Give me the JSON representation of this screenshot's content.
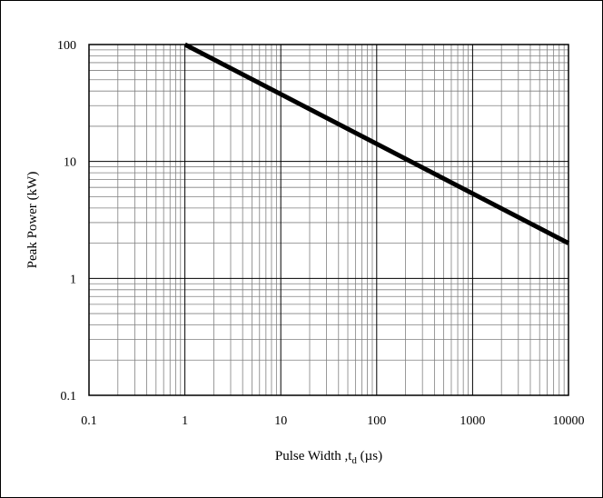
{
  "chart_data": {
    "type": "line",
    "title": "",
    "xlabel_main": "Pulse Width ,t",
    "xlabel_sub": "d",
    "xlabel_unit": " (µs)",
    "ylabel": "Peak Power  (kW)",
    "x_scale": "log",
    "y_scale": "log",
    "xlim": [
      0.1,
      10000
    ],
    "ylim": [
      0.1,
      100
    ],
    "x_ticks": [
      "0.1",
      "1",
      "10",
      "100",
      "1000",
      "10000"
    ],
    "y_ticks": [
      "0.1",
      "1",
      "10",
      "100"
    ],
    "grid": true,
    "legend": "none",
    "line_color": "#000000",
    "series": [
      {
        "x": [
          1,
          10000
        ],
        "y": [
          100,
          2
        ]
      }
    ]
  }
}
